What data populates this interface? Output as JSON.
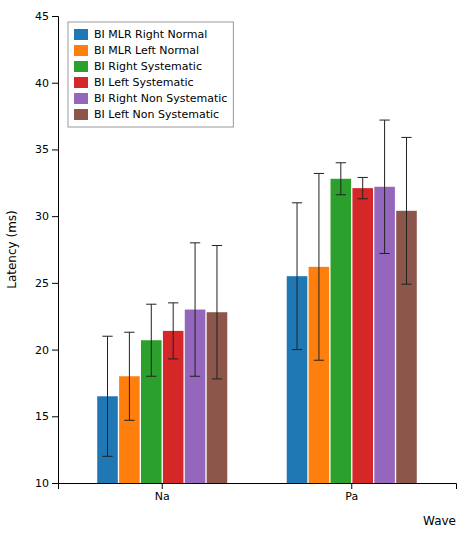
{
  "chart_data": {
    "type": "bar",
    "categories": [
      "Na",
      "Pa"
    ],
    "xlabel": "Wave",
    "ylabel": "Latency (ms)",
    "ylim": [
      10,
      45
    ],
    "yticks": [
      10,
      15,
      20,
      25,
      30,
      35,
      40,
      45
    ],
    "grid": false,
    "legend": "upper left",
    "series": [
      {
        "name": "BI MLR Right Normal",
        "values": [
          16.5,
          25.5
        ],
        "errors": [
          4.5,
          5.5
        ]
      },
      {
        "name": "BI MLR Left Normal",
        "values": [
          18.0,
          26.2
        ],
        "errors": [
          3.3,
          7.0
        ]
      },
      {
        "name": "BI Right Systematic",
        "values": [
          20.7,
          32.8
        ],
        "errors": [
          2.7,
          1.2
        ]
      },
      {
        "name": "BI Left Systematic",
        "values": [
          21.4,
          32.1
        ],
        "errors": [
          2.1,
          0.8
        ]
      },
      {
        "name": "BI Right Non Systematic",
        "values": [
          23.0,
          32.2
        ],
        "errors": [
          5.0,
          5.0
        ]
      },
      {
        "name": "BI Left Non Systematic",
        "values": [
          22.8,
          30.4
        ],
        "errors": [
          5.0,
          5.5
        ]
      }
    ]
  }
}
